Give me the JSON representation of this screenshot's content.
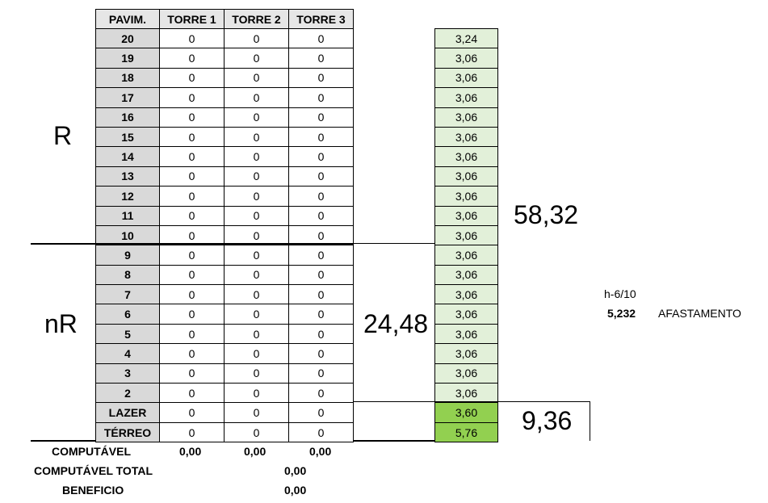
{
  "table": {
    "headers": [
      "PAVIM.",
      "TORRE 1",
      "TORRE 2",
      "TORRE 3"
    ],
    "rows": [
      {
        "pav": "20",
        "t1": "0",
        "t2": "0",
        "t3": "0"
      },
      {
        "pav": "19",
        "t1": "0",
        "t2": "0",
        "t3": "0"
      },
      {
        "pav": "18",
        "t1": "0",
        "t2": "0",
        "t3": "0"
      },
      {
        "pav": "17",
        "t1": "0",
        "t2": "0",
        "t3": "0"
      },
      {
        "pav": "16",
        "t1": "0",
        "t2": "0",
        "t3": "0"
      },
      {
        "pav": "15",
        "t1": "0",
        "t2": "0",
        "t3": "0"
      },
      {
        "pav": "14",
        "t1": "0",
        "t2": "0",
        "t3": "0"
      },
      {
        "pav": "13",
        "t1": "0",
        "t2": "0",
        "t3": "0"
      },
      {
        "pav": "12",
        "t1": "0",
        "t2": "0",
        "t3": "0"
      },
      {
        "pav": "11",
        "t1": "0",
        "t2": "0",
        "t3": "0"
      },
      {
        "pav": "10",
        "t1": "0",
        "t2": "0",
        "t3": "0"
      },
      {
        "pav": "9",
        "t1": "0",
        "t2": "0",
        "t3": "0"
      },
      {
        "pav": "8",
        "t1": "0",
        "t2": "0",
        "t3": "0"
      },
      {
        "pav": "7",
        "t1": "0",
        "t2": "0",
        "t3": "0"
      },
      {
        "pav": "6",
        "t1": "0",
        "t2": "0",
        "t3": "0"
      },
      {
        "pav": "5",
        "t1": "0",
        "t2": "0",
        "t3": "0"
      },
      {
        "pav": "4",
        "t1": "0",
        "t2": "0",
        "t3": "0"
      },
      {
        "pav": "3",
        "t1": "0",
        "t2": "0",
        "t3": "0"
      },
      {
        "pav": "2",
        "t1": "0",
        "t2": "0",
        "t3": "0"
      },
      {
        "pav": "LAZER",
        "t1": "0",
        "t2": "0",
        "t3": "0"
      },
      {
        "pav": "TÉRREO",
        "t1": "0",
        "t2": "0",
        "t3": "0"
      }
    ]
  },
  "heights": [
    "3,24",
    "3,06",
    "3,06",
    "3,06",
    "3,06",
    "3,06",
    "3,06",
    "3,06",
    "3,06",
    "3,06",
    "3,06",
    "3,06",
    "3,06",
    "3,06",
    "3,06",
    "3,06",
    "3,06",
    "3,06",
    "3,06",
    "3,60",
    "5,76"
  ],
  "labels": {
    "r": "R",
    "nr": "nR",
    "sum_r": "58,32",
    "sum_nr": "24,48",
    "sum_base": "9,36"
  },
  "summary": {
    "computavel_label": "COMPUTÁVEL",
    "computavel_values": [
      "0,00",
      "0,00",
      "0,00"
    ],
    "total_label": "COMPUTÁVEL TOTAL",
    "total_value": "0,00",
    "beneficio_label": "BENEFICIO",
    "beneficio_value": "0,00"
  },
  "note": {
    "formula": "h-6/10",
    "value": "5,232",
    "label": "AFASTAMENTO"
  },
  "colors": {
    "light_green": "#e2f0d9",
    "green": "#92d050",
    "header_gray": "#d9d9d9"
  }
}
